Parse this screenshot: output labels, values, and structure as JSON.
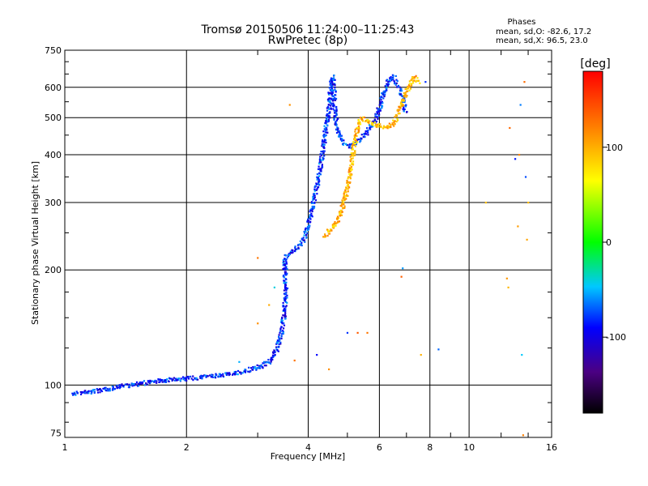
{
  "chart_data": {
    "type": "scatter",
    "title": "Tromsø 20150506 11:24:00–11:25:43",
    "subtitle": "RwPretec (8p)",
    "xlabel": "Frequency [MHz]",
    "ylabel": "Stationary phase Virtual Height [km]",
    "x_scale": "log",
    "y_scale": "log",
    "xlim": [
      1,
      16
    ],
    "ylim": [
      73,
      750
    ],
    "x_ticks": [
      1,
      2,
      4,
      6,
      8,
      10,
      16
    ],
    "y_ticks": [
      75,
      100,
      200,
      300,
      400,
      500,
      600,
      750
    ],
    "grid": true,
    "colorbar": {
      "label": "[deg]",
      "range": [
        -180,
        180
      ],
      "ticks": [
        100,
        0,
        -100
      ]
    },
    "phases": {
      "heading": "Phases",
      "line_o": "mean, sd,O: -82.6, 17.2",
      "line_x": "mean, sd,X:  96.5, 23.0"
    },
    "series": [
      {
        "name": "O",
        "phase_mean": -82.6,
        "points": [
          [
            1.05,
            95
          ],
          [
            1.15,
            96
          ],
          [
            1.25,
            97
          ],
          [
            1.35,
            99
          ],
          [
            1.45,
            100
          ],
          [
            1.55,
            101
          ],
          [
            1.65,
            102
          ],
          [
            1.8,
            103
          ],
          [
            2.0,
            104
          ],
          [
            2.2,
            105
          ],
          [
            2.4,
            106
          ],
          [
            2.6,
            107
          ],
          [
            2.8,
            109
          ],
          [
            3.0,
            111
          ],
          [
            3.2,
            115
          ],
          [
            3.35,
            124
          ],
          [
            3.45,
            140
          ],
          [
            3.5,
            160
          ],
          [
            3.52,
            170
          ],
          [
            3.5,
            215
          ],
          [
            3.6,
            220
          ],
          [
            3.75,
            228
          ],
          [
            3.9,
            240
          ],
          [
            4.0,
            260
          ],
          [
            4.1,
            290
          ],
          [
            4.2,
            330
          ],
          [
            4.3,
            380
          ],
          [
            4.4,
            450
          ],
          [
            4.5,
            520
          ],
          [
            4.55,
            600
          ],
          [
            4.6,
            640
          ],
          [
            4.7,
            470
          ],
          [
            4.9,
            430
          ],
          [
            5.1,
            420
          ],
          [
            5.4,
            440
          ],
          [
            5.7,
            470
          ],
          [
            5.9,
            500
          ],
          [
            6.1,
            560
          ],
          [
            6.3,
            620
          ],
          [
            6.5,
            640
          ],
          [
            6.7,
            600
          ],
          [
            6.85,
            560
          ],
          [
            6.95,
            520
          ]
        ]
      },
      {
        "name": "X",
        "phase_mean": 96.5,
        "points": [
          [
            4.4,
            245
          ],
          [
            4.55,
            255
          ],
          [
            4.7,
            265
          ],
          [
            4.8,
            280
          ],
          [
            4.9,
            300
          ],
          [
            5.0,
            330
          ],
          [
            5.1,
            370
          ],
          [
            5.2,
            420
          ],
          [
            5.3,
            470
          ],
          [
            5.4,
            500
          ],
          [
            5.6,
            490
          ],
          [
            5.9,
            480
          ],
          [
            6.2,
            470
          ],
          [
            6.5,
            480
          ],
          [
            6.7,
            520
          ],
          [
            6.9,
            560
          ],
          [
            7.1,
            600
          ],
          [
            7.3,
            640
          ],
          [
            7.5,
            620
          ]
        ]
      }
    ],
    "scattered_points": [
      [
        4.2,
        120
      ],
      [
        3.7,
        116
      ],
      [
        4.5,
        110
      ],
      [
        5.0,
        137
      ],
      [
        5.3,
        137
      ],
      [
        5.6,
        137
      ],
      [
        8.4,
        124
      ],
      [
        7.6,
        120
      ],
      [
        6.8,
        192
      ],
      [
        6.85,
        202
      ],
      [
        12.4,
        190
      ],
      [
        12.5,
        180
      ],
      [
        13.5,
        120
      ],
      [
        13.6,
        74
      ],
      [
        13.2,
        260
      ],
      [
        13.0,
        390
      ],
      [
        12.6,
        470
      ],
      [
        13.3,
        400
      ],
      [
        13.8,
        350
      ],
      [
        14.0,
        300
      ],
      [
        13.7,
        620
      ],
      [
        13.4,
        540
      ],
      [
        13.9,
        240
      ],
      [
        11.0,
        300
      ],
      [
        2.7,
        115
      ],
      [
        3.0,
        145
      ],
      [
        3.2,
        162
      ],
      [
        3.3,
        180
      ],
      [
        3.0,
        215
      ],
      [
        3.6,
        540
      ],
      [
        7.8,
        620
      ]
    ]
  }
}
